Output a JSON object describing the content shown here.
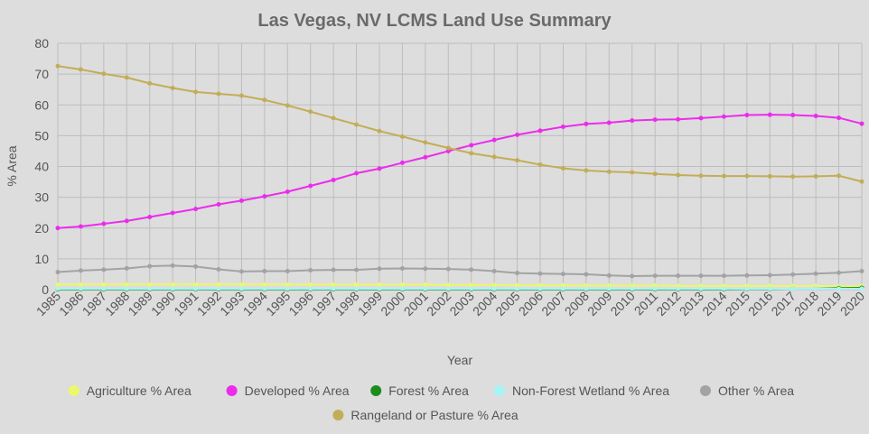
{
  "chart_data": {
    "type": "line",
    "title": "Las Vegas, NV LCMS Land Use Summary",
    "xlabel": "Year",
    "ylabel": "% Area",
    "ylim": [
      0,
      80
    ],
    "yticks": [
      0,
      10,
      20,
      30,
      40,
      50,
      60,
      70,
      80
    ],
    "grid": true,
    "legend_position": "bottom",
    "x": [
      1985,
      1986,
      1987,
      1988,
      1989,
      1990,
      1991,
      1992,
      1993,
      1994,
      1995,
      1996,
      1997,
      1998,
      1999,
      2000,
      2001,
      2002,
      2003,
      2004,
      2005,
      2006,
      2007,
      2008,
      2009,
      2010,
      2011,
      2012,
      2013,
      2014,
      2015,
      2016,
      2017,
      2018,
      2019,
      2020
    ],
    "series": [
      {
        "name": "Agriculture % Area",
        "color": "#ecf86c",
        "values": [
          1.6,
          1.7,
          1.7,
          1.7,
          1.7,
          1.7,
          1.7,
          1.7,
          1.7,
          1.7,
          1.7,
          1.6,
          1.6,
          1.6,
          1.6,
          1.6,
          1.6,
          1.5,
          1.5,
          1.5,
          1.4,
          1.4,
          1.4,
          1.3,
          1.3,
          1.3,
          1.3,
          1.2,
          1.2,
          1.2,
          1.2,
          1.2,
          1.2,
          1.2,
          1.1,
          1.1
        ]
      },
      {
        "name": "Developed % Area",
        "color": "#ec2cec",
        "values": [
          20.0,
          20.5,
          21.4,
          22.3,
          23.6,
          24.9,
          26.2,
          27.7,
          28.9,
          30.3,
          31.8,
          33.7,
          35.6,
          37.8,
          39.3,
          41.2,
          43.0,
          45.0,
          46.9,
          48.6,
          50.3,
          51.6,
          52.9,
          53.8,
          54.2,
          54.9,
          55.2,
          55.3,
          55.7,
          56.2,
          56.7,
          56.8,
          56.7,
          56.4,
          55.8,
          53.9
        ]
      },
      {
        "name": "Forest % Area",
        "color": "#1d8c1d",
        "values": [
          0.1,
          0.1,
          0.1,
          0.1,
          0.1,
          0.1,
          0.1,
          0.1,
          0.1,
          0.1,
          0.1,
          0.1,
          0.1,
          0.1,
          0.1,
          0.1,
          0.1,
          0.1,
          0.1,
          0.1,
          0.1,
          0.1,
          0.1,
          0.1,
          0.1,
          0.1,
          0.1,
          0.1,
          0.1,
          0.1,
          0.2,
          0.2,
          0.3,
          0.3,
          0.5,
          0.6
        ]
      },
      {
        "name": "Non-Forest Wetland % Area",
        "color": "#a8f4f4",
        "values": [
          0.3,
          0.3,
          0.3,
          0.3,
          0.3,
          0.3,
          0.3,
          0.3,
          0.3,
          0.3,
          0.3,
          0.3,
          0.3,
          0.3,
          0.3,
          0.3,
          0.3,
          0.3,
          0.3,
          0.3,
          0.3,
          0.3,
          0.3,
          0.3,
          0.3,
          0.3,
          0.3,
          0.3,
          0.3,
          0.3,
          0.3,
          0.3,
          0.3,
          0.3,
          0.3,
          0.3
        ]
      },
      {
        "name": "Other % Area",
        "color": "#a3a3a3",
        "values": [
          5.7,
          6.2,
          6.5,
          6.9,
          7.6,
          7.8,
          7.5,
          6.6,
          5.9,
          6.0,
          6.0,
          6.3,
          6.4,
          6.4,
          6.8,
          6.9,
          6.8,
          6.7,
          6.5,
          6.0,
          5.4,
          5.2,
          5.1,
          5.0,
          4.6,
          4.4,
          4.5,
          4.5,
          4.5,
          4.5,
          4.6,
          4.7,
          4.9,
          5.2,
          5.5,
          6.0
        ]
      },
      {
        "name": "Rangeland or Pasture % Area",
        "color": "#c2ae58",
        "values": [
          72.6,
          71.5,
          70.1,
          68.9,
          67.0,
          65.5,
          64.2,
          63.6,
          63.0,
          61.6,
          59.8,
          57.8,
          55.7,
          53.6,
          51.5,
          49.7,
          47.8,
          46.0,
          44.3,
          43.1,
          42.0,
          40.6,
          39.4,
          38.7,
          38.3,
          38.1,
          37.6,
          37.2,
          37.0,
          36.9,
          36.9,
          36.8,
          36.7,
          36.8,
          37.0,
          35.1
        ]
      }
    ]
  }
}
